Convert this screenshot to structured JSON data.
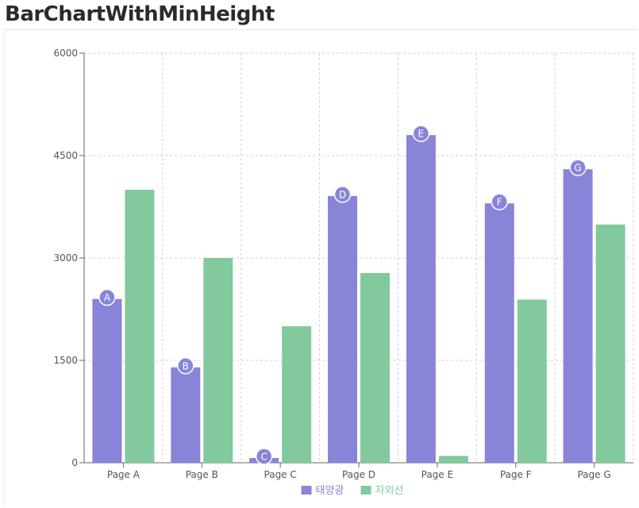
{
  "title": "BarChartWithMinHeight",
  "chart_data": {
    "type": "bar",
    "categories": [
      "Page A",
      "Page B",
      "Page C",
      "Page D",
      "Page E",
      "Page F",
      "Page G"
    ],
    "series": [
      {
        "name": "태양광",
        "color": "#8884d8",
        "values": [
          2400,
          1398,
          60,
          3908,
          4800,
          3800,
          4300
        ],
        "point_labels": [
          "A",
          "B",
          "C",
          "D",
          "E",
          "F",
          "G"
        ]
      },
      {
        "name": "자외선",
        "color": "#82ca9d",
        "values": [
          4000,
          3000,
          2000,
          2780,
          100,
          2390,
          3490
        ]
      }
    ],
    "y_ticks": [
      "0",
      "1500",
      "3000",
      "4500",
      "6000"
    ],
    "ylim": [
      0,
      6000
    ],
    "grid": true,
    "grid_style": "dashed",
    "legend_position": "bottom-center"
  }
}
